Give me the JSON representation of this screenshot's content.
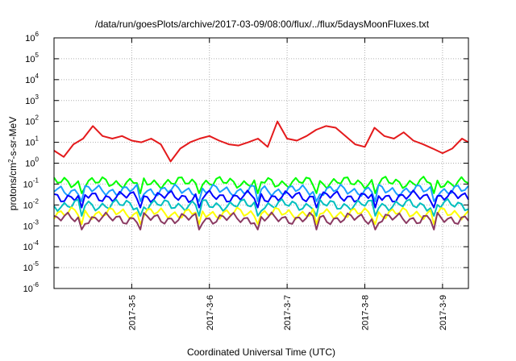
{
  "chart_data": {
    "type": "line",
    "title": "/data/run/goesPlots/archive/2017-03-09/08:00/flux/../flux/5daysMoonFluxes.txt",
    "xlabel": "Coordinated Universal Time (UTC)",
    "ylabel": "protons/cm²-s-sr-MeV",
    "ylabel_parts": {
      "base": "protons/cm",
      "sup": "2",
      "rest": "-s-sr-MeV"
    },
    "yscale": "log",
    "ylim": [
      1e-06,
      1000000.0
    ],
    "y_ticks": [
      {
        "value": 1e-06,
        "base": "10",
        "exp": "-6"
      },
      {
        "value": 1e-05,
        "base": "10",
        "exp": "-5"
      },
      {
        "value": 0.0001,
        "base": "10",
        "exp": "-4"
      },
      {
        "value": 0.001,
        "base": "10",
        "exp": "-3"
      },
      {
        "value": 0.01,
        "base": "10",
        "exp": "-2"
      },
      {
        "value": 0.1,
        "base": "10",
        "exp": "-1"
      },
      {
        "value": 1,
        "base": "10",
        "exp": "0"
      },
      {
        "value": 10,
        "base": "10",
        "exp": "1"
      },
      {
        "value": 100,
        "base": "10",
        "exp": "2"
      },
      {
        "value": 1000,
        "base": "10",
        "exp": "3"
      },
      {
        "value": 10000,
        "base": "10",
        "exp": "4"
      },
      {
        "value": 100000,
        "base": "10",
        "exp": "5"
      },
      {
        "value": 1000000,
        "base": "10",
        "exp": "6"
      }
    ],
    "xlim": [
      "2017-03-04 00:00",
      "2017-03-09 08:00"
    ],
    "x_ticks": [
      "2017-3-5",
      "2017-3-6",
      "2017-3-7",
      "2017-3-8",
      "2017-3-9"
    ],
    "grid": true,
    "series": [
      {
        "color": "#e41a1c",
        "x": [
          "2017-03-04 00:00",
          "2017-03-04 03:00",
          "2017-03-04 06:00",
          "2017-03-04 09:00",
          "2017-03-04 12:00",
          "2017-03-04 15:00",
          "2017-03-04 18:00",
          "2017-03-04 21:00",
          "2017-03-05 00:00",
          "2017-03-05 03:00",
          "2017-03-05 06:00",
          "2017-03-05 09:00",
          "2017-03-05 12:00",
          "2017-03-05 15:00",
          "2017-03-05 18:00",
          "2017-03-05 21:00",
          "2017-03-06 00:00",
          "2017-03-06 03:00",
          "2017-03-06 06:00",
          "2017-03-06 09:00",
          "2017-03-06 12:00",
          "2017-03-06 15:00",
          "2017-03-06 18:00",
          "2017-03-06 21:00",
          "2017-03-07 00:00",
          "2017-03-07 03:00",
          "2017-03-07 06:00",
          "2017-03-07 09:00",
          "2017-03-07 12:00",
          "2017-03-07 15:00",
          "2017-03-07 18:00",
          "2017-03-07 21:00",
          "2017-03-08 00:00",
          "2017-03-08 03:00",
          "2017-03-08 06:00",
          "2017-03-08 09:00",
          "2017-03-08 12:00",
          "2017-03-08 15:00",
          "2017-03-08 18:00",
          "2017-03-08 21:00",
          "2017-03-09 00:00",
          "2017-03-09 03:00",
          "2017-03-09 06:00",
          "2017-03-09 08:00"
        ],
        "y": [
          4,
          2,
          8,
          15,
          60,
          20,
          15,
          20,
          12,
          10,
          15,
          8,
          1.2,
          5,
          10,
          15,
          20,
          12,
          8,
          7,
          10,
          15,
          6,
          100,
          15,
          12,
          20,
          40,
          60,
          50,
          20,
          8,
          6,
          50,
          20,
          15,
          30,
          12,
          8,
          5,
          3,
          5,
          15,
          10
        ]
      },
      {
        "color": "#00ff00",
        "x": [
          "2017-03-04 00:00",
          "2017-03-09 08:00"
        ],
        "y": [
          0.12,
          0.12
        ]
      },
      {
        "color": "#1a9fff",
        "x": [
          "2017-03-04 00:00",
          "2017-03-09 08:00"
        ],
        "y": [
          0.05,
          0.05
        ]
      },
      {
        "color": "#0000ff",
        "x": [
          "2017-03-04 00:00",
          "2017-03-09 08:00"
        ],
        "y": [
          0.025,
          0.025
        ]
      },
      {
        "color": "#00bfbf",
        "x": [
          "2017-03-04 00:00",
          "2017-03-09 08:00"
        ],
        "y": [
          0.01,
          0.01
        ]
      },
      {
        "color": "#ffff00",
        "x": [
          "2017-03-04 00:00",
          "2017-03-09 08:00"
        ],
        "y": [
          0.004,
          0.004
        ]
      },
      {
        "color": "#8b3a62",
        "x": [
          "2017-03-04 00:00",
          "2017-03-09 08:00"
        ],
        "y": [
          0.0022,
          0.0022
        ]
      }
    ]
  }
}
